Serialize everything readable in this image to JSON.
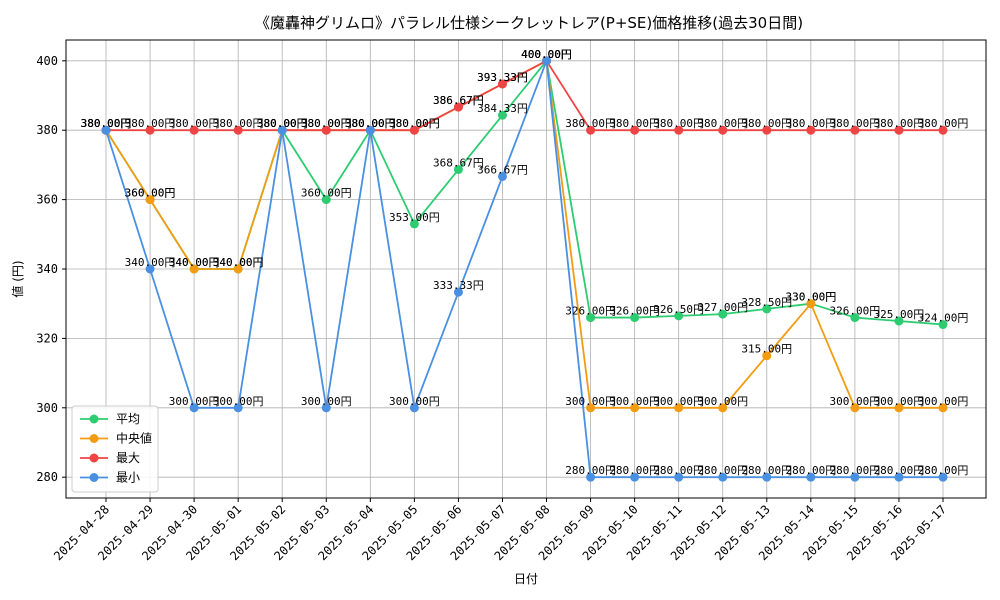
{
  "chart_data": {
    "type": "line",
    "title": "《魔轟神グリムロ》パラレル仕様シークレットレア(P+SE)価格推移(過去30日間)",
    "xlabel": "日付",
    "ylabel": "値 (円)",
    "ylim": [
      274,
      406
    ],
    "yticks": [
      280,
      300,
      320,
      340,
      360,
      380,
      400
    ],
    "grid": true,
    "legend_position": "lower-left",
    "value_suffix": "円",
    "x": [
      "2025-04-28",
      "2025-04-29",
      "2025-04-30",
      "2025-05-01",
      "2025-05-02",
      "2025-05-03",
      "2025-05-04",
      "2025-05-05",
      "2025-05-06",
      "2025-05-07",
      "2025-05-08",
      "2025-05-09",
      "2025-05-10",
      "2025-05-11",
      "2025-05-12",
      "2025-05-13",
      "2025-05-14",
      "2025-05-15",
      "2025-05-16",
      "2025-05-17"
    ],
    "series": [
      {
        "name": "平均",
        "color": "#2ecc71",
        "values": [
          380,
          360,
          340,
          340,
          380,
          360,
          380,
          353,
          368.67,
          384.33,
          400,
          326,
          326,
          326.5,
          327,
          328.5,
          330,
          326,
          325,
          324
        ]
      },
      {
        "name": "中央値",
        "color": "#f39c12",
        "values": [
          380,
          360,
          340,
          340,
          380,
          380,
          380,
          380,
          386.67,
          393.33,
          400,
          300,
          300,
          300,
          300,
          315,
          330,
          300,
          300,
          300
        ]
      },
      {
        "name": "最大",
        "color": "#ef4444",
        "values": [
          380,
          380,
          380,
          380,
          380,
          380,
          380,
          380,
          386.67,
          393.33,
          400,
          380,
          380,
          380,
          380,
          380,
          380,
          380,
          380,
          380
        ]
      },
      {
        "name": "最小",
        "color": "#4a90e2",
        "values": [
          380,
          340,
          300,
          300,
          380,
          300,
          380,
          300,
          333.33,
          366.67,
          400,
          280,
          280,
          280,
          280,
          280,
          280,
          280,
          280,
          280
        ]
      }
    ]
  }
}
